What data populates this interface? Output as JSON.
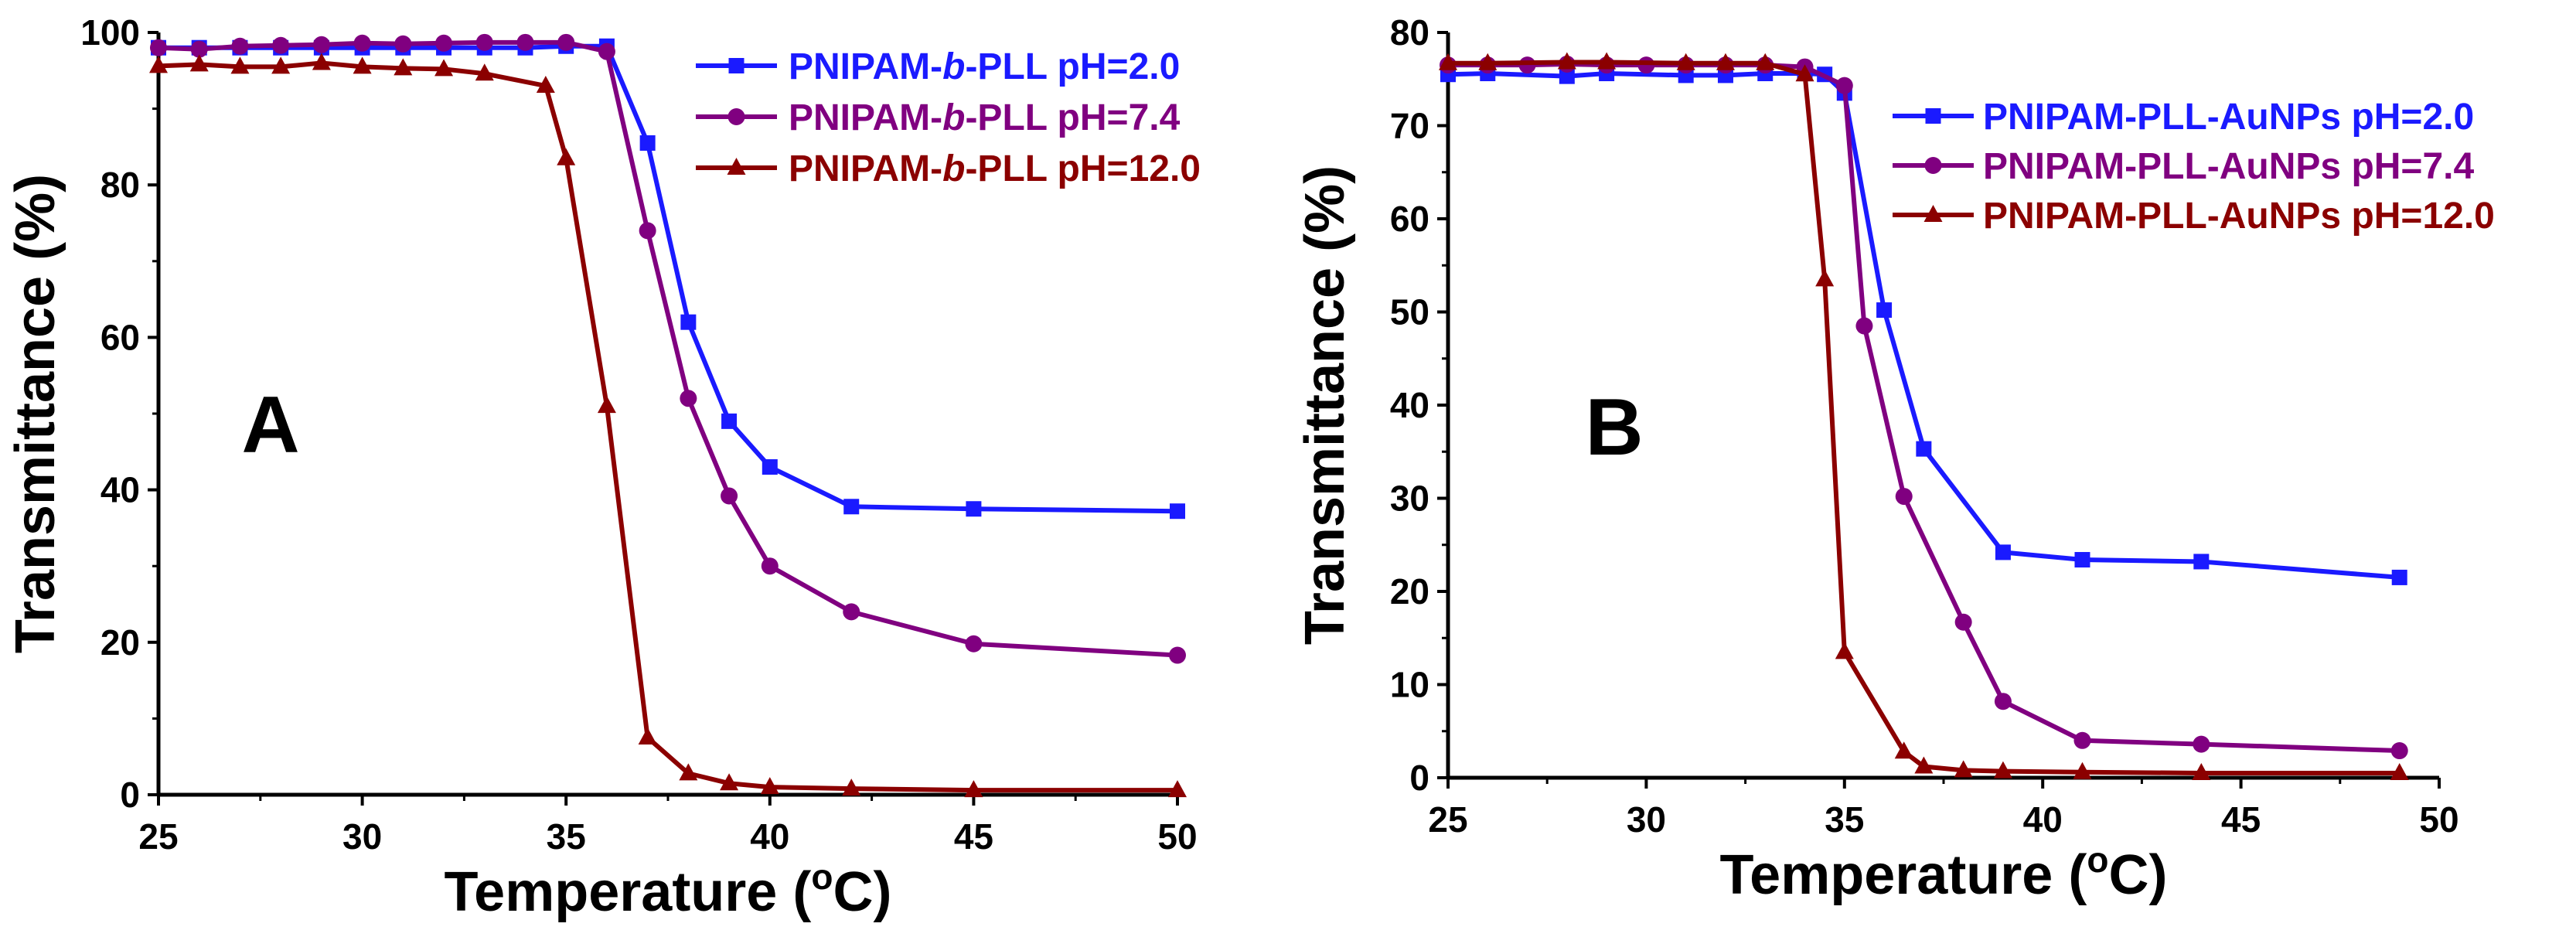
{
  "chart_data": [
    {
      "type": "line",
      "panel_label": "A",
      "xlabel_prefix": "Temperature (",
      "xlabel_sup": "o",
      "xlabel_suffix": "C)",
      "ylabel": "Transmittance (%)",
      "xlim": [
        25,
        50
      ],
      "ylim": [
        0,
        100
      ],
      "xticks": [
        "25",
        "30",
        "35",
        "40",
        "45",
        "50"
      ],
      "yticks": [
        "0",
        "20",
        "40",
        "60",
        "80",
        "100"
      ],
      "legend_position": "top-right",
      "series": [
        {
          "name": "PNIPAM-b-PLL pH=2.0",
          "legend_parts": [
            "PNIPAM-",
            "b",
            "-PLL pH=2.0"
          ],
          "color": "#1a1aff",
          "marker": "square",
          "x": [
            25,
            26,
            27,
            28,
            29,
            30,
            31,
            32,
            33,
            34,
            35,
            36,
            37,
            38,
            39,
            40,
            42,
            45,
            50
          ],
          "y": [
            98,
            98,
            98,
            98,
            98,
            98,
            98,
            98,
            98,
            98,
            98.2,
            98.2,
            85.5,
            62,
            49,
            43,
            37.8,
            37.5,
            37.2
          ]
        },
        {
          "name": "PNIPAM-b-PLL pH=7.4",
          "legend_parts": [
            "PNIPAM-",
            "b",
            "-PLL pH=7.4"
          ],
          "color": "#800080",
          "marker": "circle",
          "x": [
            25,
            26,
            27,
            28,
            29,
            30,
            31,
            32,
            33,
            34,
            35,
            36,
            37,
            38,
            39,
            40,
            42,
            45,
            50
          ],
          "y": [
            98,
            97.8,
            98.2,
            98.3,
            98.4,
            98.6,
            98.5,
            98.6,
            98.7,
            98.7,
            98.7,
            97.5,
            74,
            52,
            39.2,
            30,
            24,
            19.8,
            18.3
          ]
        },
        {
          "name": "PNIPAM-b-PLL pH=12.0",
          "legend_parts": [
            "PNIPAM-",
            "b",
            "-PLL pH=12.0"
          ],
          "color": "#8b0000",
          "marker": "triangle",
          "x": [
            25,
            26,
            27,
            28,
            29,
            30,
            31,
            32,
            33,
            34.5,
            35,
            36,
            37,
            38,
            39,
            40,
            42,
            45,
            50
          ],
          "y": [
            95.6,
            95.8,
            95.5,
            95.5,
            96,
            95.5,
            95.3,
            95.2,
            94.6,
            93,
            83.5,
            51,
            7.5,
            2.8,
            1.5,
            1,
            0.8,
            0.6,
            0.6
          ]
        }
      ]
    },
    {
      "type": "line",
      "panel_label": "B",
      "xlabel_prefix": "Temperature (",
      "xlabel_sup": "o",
      "xlabel_suffix": "C)",
      "ylabel": "Transmittance (%)",
      "xlim": [
        25,
        50
      ],
      "ylim": [
        0,
        80
      ],
      "xticks": [
        "25",
        "30",
        "35",
        "40",
        "45",
        "50"
      ],
      "yticks": [
        "0",
        "10",
        "20",
        "30",
        "40",
        "50",
        "60",
        "70",
        "80"
      ],
      "legend_position": "top-right",
      "series": [
        {
          "name": "PNIPAM-PLL-AuNPs pH=2.0",
          "legend_parts": [
            "PNIPAM-PLL-AuNPs pH=2.0",
            "",
            ""
          ],
          "color": "#1a1aff",
          "marker": "square",
          "x": [
            25,
            26,
            28,
            29,
            31,
            32,
            33,
            34,
            34.5,
            35,
            36,
            37,
            39,
            41,
            44,
            49
          ],
          "y": [
            75.5,
            75.6,
            75.3,
            75.6,
            75.4,
            75.4,
            75.6,
            75.6,
            75.5,
            73.5,
            50.2,
            35.3,
            24.2,
            23.4,
            23.2,
            21.5
          ]
        },
        {
          "name": "PNIPAM-PLL-AuNPs pH=7.4",
          "legend_parts": [
            "PNIPAM-PLL-AuNPs pH=7.4",
            "",
            ""
          ],
          "color": "#800080",
          "marker": "circle",
          "x": [
            25,
            26,
            27,
            28,
            29,
            30,
            31,
            32,
            33,
            34,
            35,
            35.5,
            36.5,
            38,
            39,
            41,
            44,
            49
          ],
          "y": [
            76.5,
            76.5,
            76.5,
            76.6,
            76.5,
            76.5,
            76.5,
            76.5,
            76.5,
            76.3,
            74.3,
            48.5,
            30.2,
            16.7,
            8.2,
            4,
            3.6,
            2.9
          ]
        },
        {
          "name": "PNIPAM-PLL-AuNPs pH=12.0",
          "legend_parts": [
            "PNIPAM-PLL-AuNPs pH=12.0",
            "",
            ""
          ],
          "color": "#8b0000",
          "marker": "triangle",
          "x": [
            25,
            26,
            28,
            29,
            31,
            32,
            33,
            34,
            34.5,
            35,
            36.5,
            37,
            38,
            39,
            41,
            44,
            49
          ],
          "y": [
            76.7,
            76.7,
            76.8,
            76.8,
            76.7,
            76.7,
            76.7,
            75.5,
            53.5,
            13.5,
            2.8,
            1.2,
            0.8,
            0.7,
            0.6,
            0.5,
            0.5
          ]
        }
      ]
    }
  ]
}
